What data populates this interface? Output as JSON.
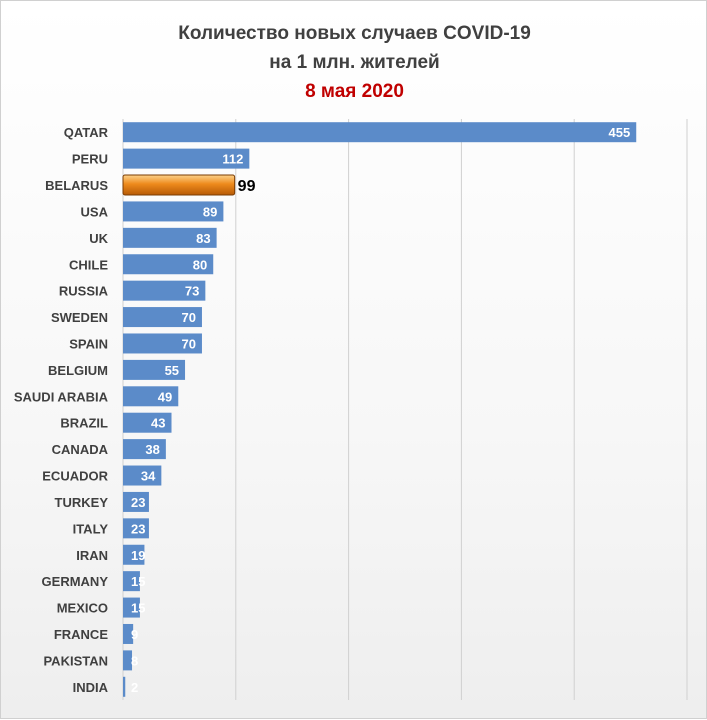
{
  "title_lines": [
    "Количество новых случаев COVID-19",
    "на 1 млн. жителей",
    "8 мая 2020"
  ],
  "colors": {
    "bar": "#5b8bc9",
    "highlight": "#e57a12",
    "title": "#404040",
    "date": "#c00000",
    "grid": "#d0d0d0"
  },
  "chart_data": {
    "type": "bar",
    "orientation": "horizontal",
    "title": "Количество новых случаев COVID-19 на 1 млн. жителей",
    "subtitle": "8 мая 2020",
    "categories": [
      "QATAR",
      "PERU",
      "BELARUS",
      "USA",
      "UK",
      "CHILE",
      "RUSSIA",
      "SWEDEN",
      "SPAIN",
      "BELGIUM",
      "SAUDI ARABIA",
      "BRAZIL",
      "CANADA",
      "ECUADOR",
      "TURKEY",
      "ITALY",
      "IRAN",
      "GERMANY",
      "MEXICO",
      "FRANCE",
      "PAKISTAN",
      "INDIA"
    ],
    "values": [
      455,
      112,
      99,
      89,
      83,
      80,
      73,
      70,
      70,
      55,
      49,
      43,
      38,
      34,
      23,
      23,
      19,
      15,
      15,
      9,
      8,
      2
    ],
    "highlight": "BELARUS",
    "xlim": [
      0,
      500
    ],
    "grid": true,
    "legend": false
  }
}
